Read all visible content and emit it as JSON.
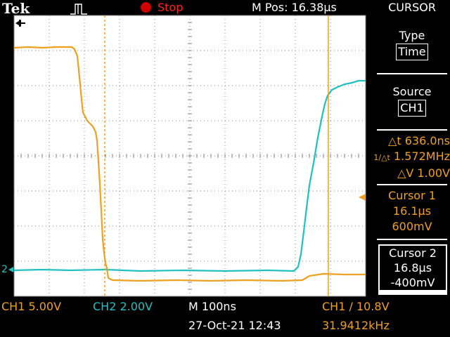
{
  "brand": "Tek",
  "run_state": "Stop",
  "trigger_position": "M Pos: 16.38µs",
  "menu": {
    "title": "CURSOR",
    "type_label": "Type",
    "type_value": "Time",
    "source_label": "Source",
    "source_value": "CH1",
    "delta_t": "△t 636.0ns",
    "inv_delta_t": "1.572MHz",
    "delta_v": "△V 1.00V",
    "cursor1_label": "Cursor 1",
    "cursor1_time": "16.1µs",
    "cursor1_volt": "600mV",
    "cursor2_label": "Cursor 2",
    "cursor2_time": "16.8µs",
    "cursor2_volt": "-400mV"
  },
  "status": {
    "ch1_scale": "CH1  5.00V",
    "ch2_scale": "CH2  2.00V",
    "timebase": "M 100ns",
    "trigger": "CH1 ∕ 10.8V",
    "datetime": "27-Oct-21 12:43",
    "frequency": "31.9412kHz"
  },
  "markers": {
    "ch2_ground": "2"
  },
  "colors": {
    "ch1": "#f0a020",
    "ch2": "#20c0c0",
    "grid": "#8a8a8a",
    "screen": "#ffffff"
  }
}
